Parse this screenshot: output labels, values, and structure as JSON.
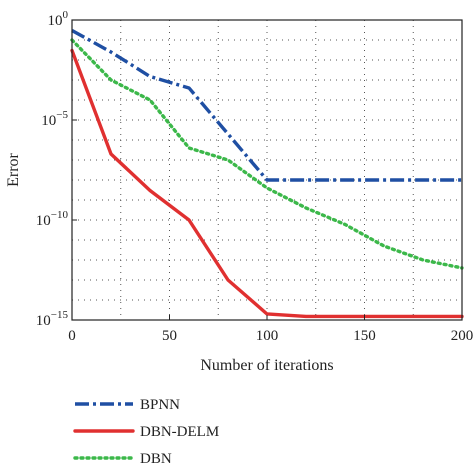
{
  "chart_data": {
    "type": "line",
    "xlabel": "Number of iterations",
    "ylabel": "Error",
    "xlim": [
      0,
      200
    ],
    "ylim": [
      1e-15,
      1
    ],
    "yscale": "log",
    "grid": true,
    "grid_style": "dotted",
    "legend_position": "below",
    "x_ticks": [
      0,
      50,
      100,
      150,
      200
    ],
    "x_tick_labels": [
      "0",
      "50",
      "100",
      "150",
      "200"
    ],
    "y_ticks": [
      {
        "value": 1,
        "base": "10",
        "exp": "0"
      },
      {
        "value": 1e-05,
        "base": "10",
        "exp": "−5"
      },
      {
        "value": 1e-10,
        "base": "10",
        "exp": "−10"
      },
      {
        "value": 1e-15,
        "base": "10",
        "exp": "−15"
      }
    ],
    "series": [
      {
        "name": "BPNN",
        "color": "#1f4fa3",
        "dash": "dashdot",
        "x": [
          0,
          20,
          40,
          60,
          80,
          100,
          120,
          140,
          160,
          180,
          200
        ],
        "y": [
          0.3,
          0.025,
          0.0015,
          0.0004,
          2e-06,
          1e-08,
          1e-08,
          1e-08,
          1e-08,
          1e-08,
          1e-08
        ]
      },
      {
        "name": "DBN-DELM",
        "color": "#e03030",
        "dash": "solid",
        "x": [
          0,
          20,
          40,
          60,
          80,
          100,
          120,
          140,
          160,
          180,
          200
        ],
        "y": [
          0.03,
          2e-07,
          3e-09,
          1e-10,
          1e-13,
          2e-15,
          1.5e-15,
          1.5e-15,
          1.5e-15,
          1.5e-15,
          1.5e-15
        ]
      },
      {
        "name": "DBN",
        "color": "#3cb84a",
        "dash": "dotted",
        "x": [
          0,
          20,
          40,
          60,
          80,
          100,
          120,
          140,
          160,
          180,
          200
        ],
        "y": [
          0.1,
          0.001,
          0.0001,
          4e-07,
          1e-07,
          4e-09,
          4e-10,
          6e-11,
          5e-12,
          1e-12,
          4e-13
        ]
      }
    ]
  }
}
